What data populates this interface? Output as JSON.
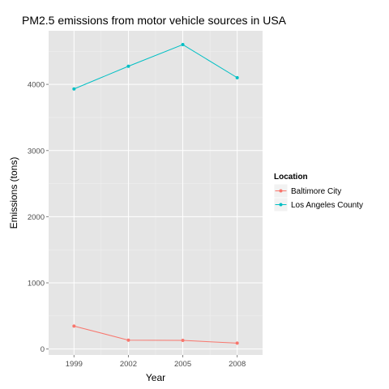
{
  "chart_data": {
    "type": "line",
    "title": "PM2.5 emissions from motor vehicle sources in USA",
    "xlabel": "Year",
    "ylabel": "Emissions (tons)",
    "x": [
      1999,
      2002,
      2005,
      2008
    ],
    "x_tick_labels": [
      "1999",
      "2002",
      "2005",
      "2008"
    ],
    "xlim": [
      1997.6,
      2009.4
    ],
    "y_ticks": [
      0,
      1000,
      2000,
      3000,
      4000
    ],
    "y_tick_labels": [
      "0",
      "1000",
      "2000",
      "3000",
      "4000"
    ],
    "ylim": [
      -90,
      4810
    ],
    "grid": true,
    "legend": {
      "title": "Location",
      "position": "right"
    },
    "series": [
      {
        "name": "Baltimore City",
        "color": "#F8766D",
        "values": [
          347,
          134,
          130,
          89
        ]
      },
      {
        "name": "Los Angeles County",
        "color": "#00BFC4",
        "values": [
          3931,
          4274,
          4601,
          4101
        ]
      }
    ]
  }
}
